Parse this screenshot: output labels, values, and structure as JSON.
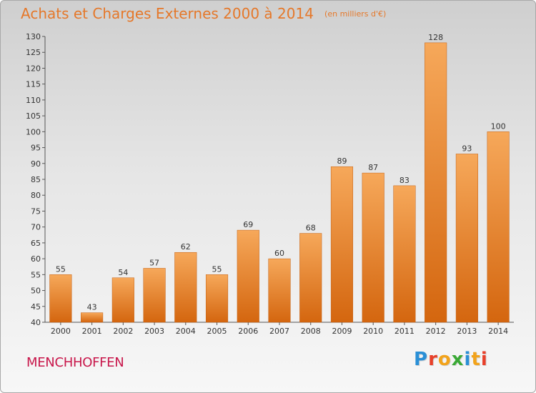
{
  "header": {
    "title": "Achats et Charges Externes 2000 à 2014",
    "unit": "(en milliers d'€)"
  },
  "location": "MENCHHOFFEN",
  "brand": {
    "letters": [
      "P",
      "r",
      "o",
      "x",
      "i",
      "t",
      "i"
    ],
    "colors": [
      "#2a8fd6",
      "#e8402a",
      "#f2a31b",
      "#3aa935",
      "#2a8fd6",
      "#f2a31b",
      "#e8402a"
    ]
  },
  "colors": {
    "bar_top": "#f6a85a",
    "bar_bottom": "#d4660f",
    "text": "#333333",
    "accent": "#e5782a"
  },
  "chart_data": {
    "type": "bar",
    "categories": [
      "2000",
      "2001",
      "2002",
      "2003",
      "2004",
      "2005",
      "2006",
      "2007",
      "2008",
      "2009",
      "2010",
      "2011",
      "2012",
      "2013",
      "2014"
    ],
    "values": [
      55,
      43,
      54,
      57,
      62,
      55,
      69,
      60,
      68,
      89,
      87,
      83,
      128,
      93,
      100
    ],
    "ylim": [
      40,
      130
    ],
    "yticks": [
      40,
      45,
      50,
      55,
      60,
      65,
      70,
      75,
      80,
      85,
      90,
      95,
      100,
      105,
      110,
      115,
      120,
      125,
      130
    ],
    "grid": false,
    "title": "Achats et Charges Externes 2000 à 2014",
    "xlabel": "",
    "ylabel": ""
  }
}
